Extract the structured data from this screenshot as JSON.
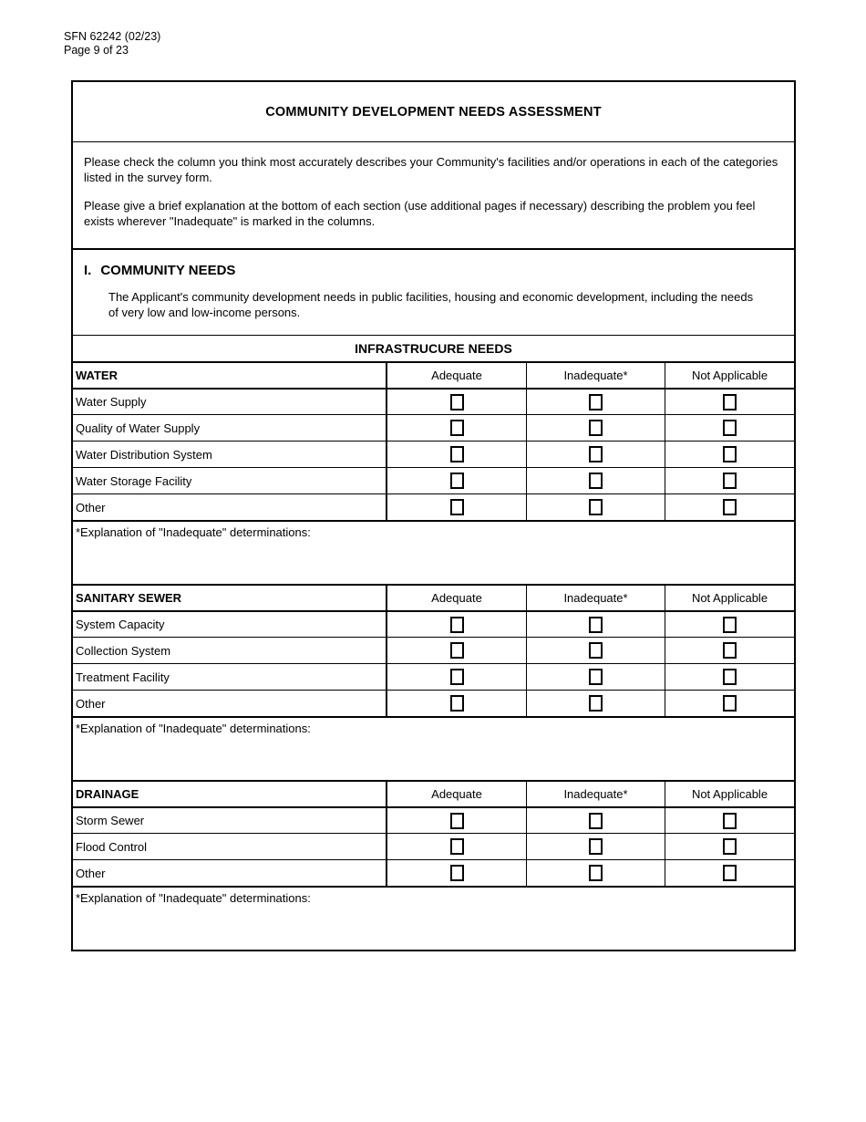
{
  "doc": {
    "form_number": "SFN 62242 (02/23)",
    "page_number": "Page 9 of 23"
  },
  "form": {
    "title": "COMMUNITY DEVELOPMENT NEEDS ASSESSMENT",
    "instructions": [
      "Please check the column you think most accurately describes your Community's facilities and/or operations in each of the categories listed in the survey form.",
      "Please give a brief explanation at the bottom of each section (use additional pages if necessary) describing the problem you feel exists wherever \"Inadequate\" is marked in the columns."
    ],
    "section": {
      "number": "I.",
      "heading": "COMMUNITY NEEDS",
      "description": "The Applicant's community development needs in public facilities, housing and economic development, including the needs of very low and low-income persons."
    },
    "subsection_title": "INFRASTRUCURE NEEDS",
    "columns": [
      "Adequate",
      "Inadequate*",
      "Not Applicable"
    ],
    "explanation_label": "*Explanation of \"Inadequate\" determinations:",
    "checkbox_state": "unchecked",
    "tables": [
      {
        "category": "WATER",
        "rows": [
          "Water Supply",
          "Quality of Water Supply",
          "Water Distribution System",
          "Water Storage Facility",
          "Other"
        ]
      },
      {
        "category": "SANITARY SEWER",
        "rows": [
          "System Capacity",
          "Collection System",
          "Treatment Facility",
          "Other"
        ]
      },
      {
        "category": "DRAINAGE",
        "rows": [
          "Storm Sewer",
          "Flood Control",
          "Other"
        ]
      }
    ]
  }
}
